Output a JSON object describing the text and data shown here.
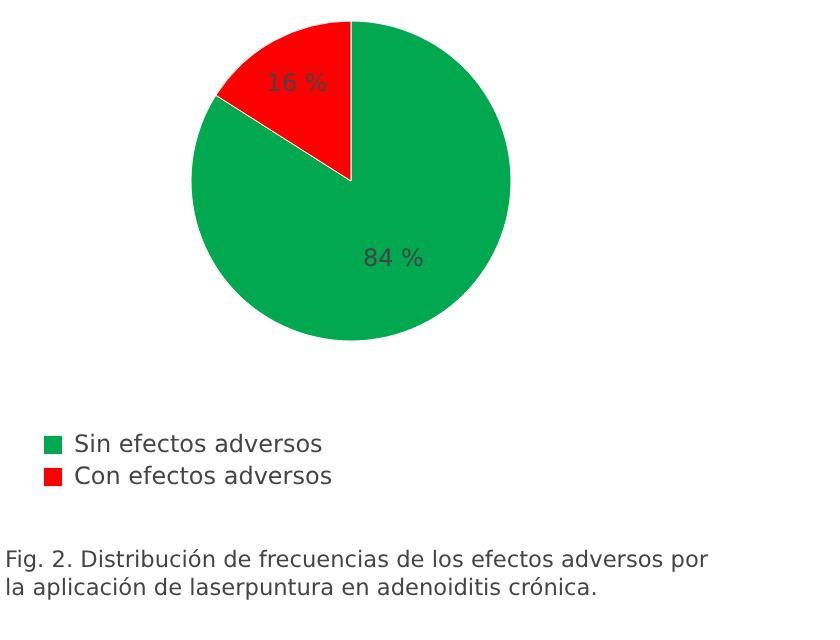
{
  "chart_data": {
    "type": "pie",
    "categories": [
      "Sin efectos adversos",
      "Con efectos adversos"
    ],
    "values": [
      84,
      16
    ],
    "colors": [
      "#00a84f",
      "#ff0000"
    ],
    "value_labels": [
      "84 %",
      "16 %"
    ],
    "legend": "bottom left",
    "annotations": [
      "Fig. 2. Distribución de frecuencias de los efectos adversos por\nla aplicación de laserpuntura en adenoiditis crónica."
    ]
  }
}
